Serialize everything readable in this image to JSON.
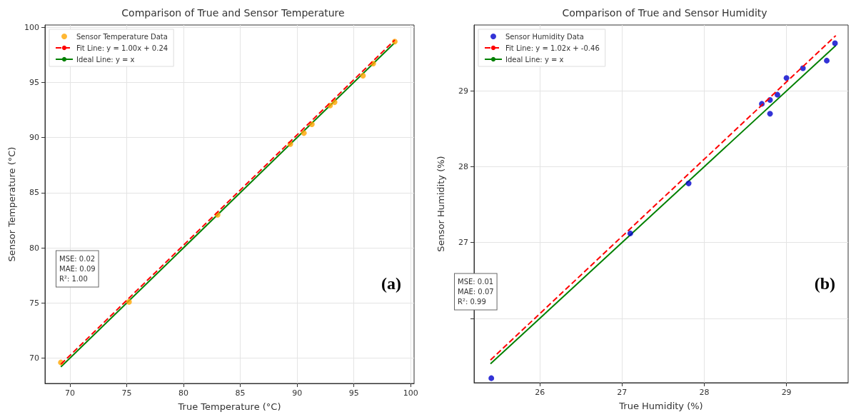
{
  "chart_data": [
    {
      "type": "scatter",
      "title": "Comparison of True and Sensor Temperature",
      "xlabel": "True Temperature (°C)",
      "ylabel": "Sensor Temperature (°C)",
      "xlim": [
        67.8,
        100.3
      ],
      "ylim": [
        67.7,
        100.2
      ],
      "xticks": [
        70,
        75,
        80,
        85,
        90,
        95,
        100
      ],
      "yticks": [
        70,
        75,
        80,
        85,
        90,
        95,
        100
      ],
      "grid": true,
      "legend": "top left",
      "annotations": [
        "MSE: 0.02\nMAE: 0.09\nR²: 1.00",
        "(a)"
      ],
      "series": [
        {
          "name": "Sensor Temperature Data",
          "marker": "circle",
          "color": "#ffa500",
          "x": [
            69.2,
            75.2,
            83.0,
            89.4,
            90.6,
            91.3,
            92.9,
            93.3,
            95.8,
            96.7,
            98.6
          ],
          "values": [
            69.6,
            75.1,
            83.0,
            89.4,
            90.4,
            91.2,
            92.9,
            93.2,
            95.6,
            96.7,
            98.7
          ]
        },
        {
          "name": "Fit Line: y = 1.00x + 0.24",
          "type": "line",
          "color": "#ff0000",
          "line_style": "dashed",
          "x": [
            69.2,
            98.6
          ],
          "values": [
            69.44,
            98.84
          ]
        },
        {
          "name": "Ideal Line: y = x",
          "type": "line",
          "color": "#008000",
          "line_style": "solid",
          "x": [
            69.2,
            98.6
          ],
          "values": [
            69.2,
            98.6
          ]
        }
      ]
    },
    {
      "type": "scatter",
      "title": "Comparison of True and Sensor Humidity",
      "xlabel": "True Humidity (%)",
      "ylabel": "Sensor Humidity (%)",
      "xlim": [
        25.2,
        29.75
      ],
      "ylim": [
        25.15,
        29.87
      ],
      "xticks": [
        26,
        27,
        28,
        29
      ],
      "yticks": [
        {
          "value": 26,
          "label": null
        },
        27,
        28,
        29
      ],
      "grid": true,
      "legend": "top left",
      "annotations": [
        "MSE: 0.01\nMAE: 0.07\nR²: 0.99",
        "(b)"
      ],
      "series": [
        {
          "name": "Sensor Humidity Data",
          "marker": "circle",
          "color": "#0000cc",
          "x": [
            25.41,
            27.1,
            27.81,
            28.7,
            28.8,
            28.8,
            28.89,
            29.0,
            29.2,
            29.49,
            29.59
          ],
          "values": [
            25.21,
            27.12,
            27.78,
            28.83,
            28.88,
            28.7,
            28.95,
            29.17,
            29.3,
            29.4,
            29.63
          ]
        },
        {
          "name": "Fit Line: y = 1.02x + -0.46",
          "type": "line",
          "color": "#ff0000",
          "line_style": "dashed",
          "x": [
            25.4,
            29.6
          ],
          "values": [
            25.45,
            29.73
          ]
        },
        {
          "name": "Ideal Line: y = x",
          "type": "line",
          "color": "#008000",
          "line_style": "solid",
          "x": [
            25.4,
            29.6
          ],
          "values": [
            25.4,
            29.6
          ]
        }
      ]
    }
  ]
}
